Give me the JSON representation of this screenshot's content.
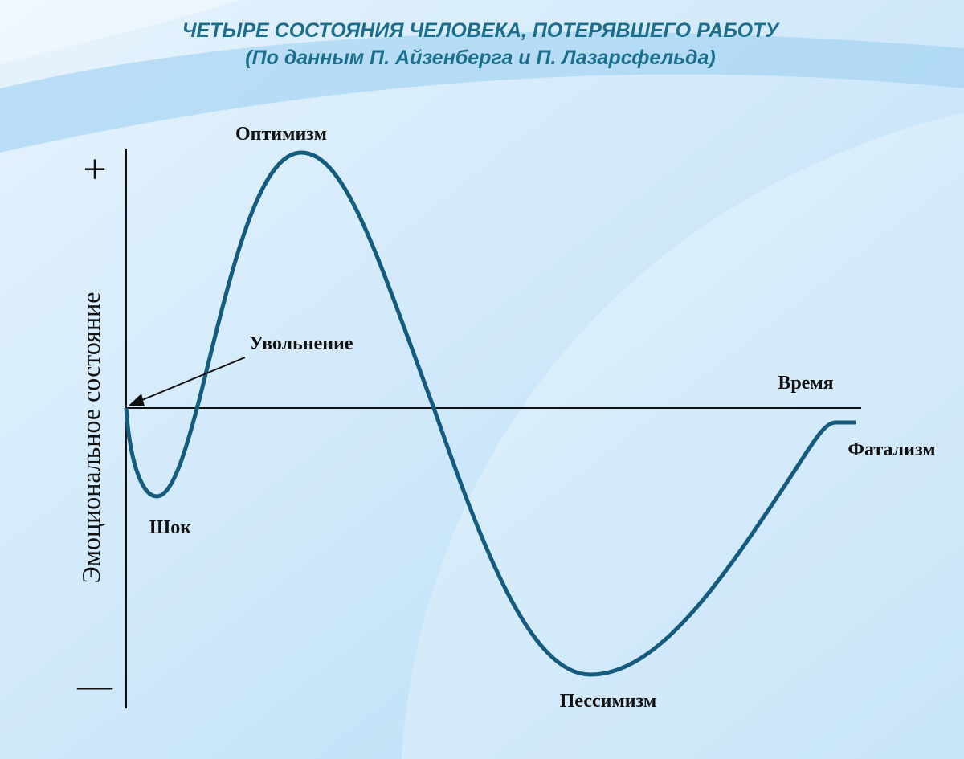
{
  "header": {
    "title": "ЧЕТЫРЕ СОСТОЯНИЯ ЧЕЛОВЕКА, ПОТЕРЯВШЕГО РАБОТУ",
    "subtitle": "(По данным П. Айзенберга и П. Лазарсфельда)"
  },
  "axes": {
    "y_label": "Эмоциональное состояние",
    "y_top": "+",
    "y_bottom": "—",
    "x_label": "Время"
  },
  "annotations": {
    "dismissal": "Увольнение",
    "shock": "Шок",
    "optimism": "Оптимизм",
    "pessimism": "Пессимизм",
    "fatalism": "Фатализм"
  }
}
